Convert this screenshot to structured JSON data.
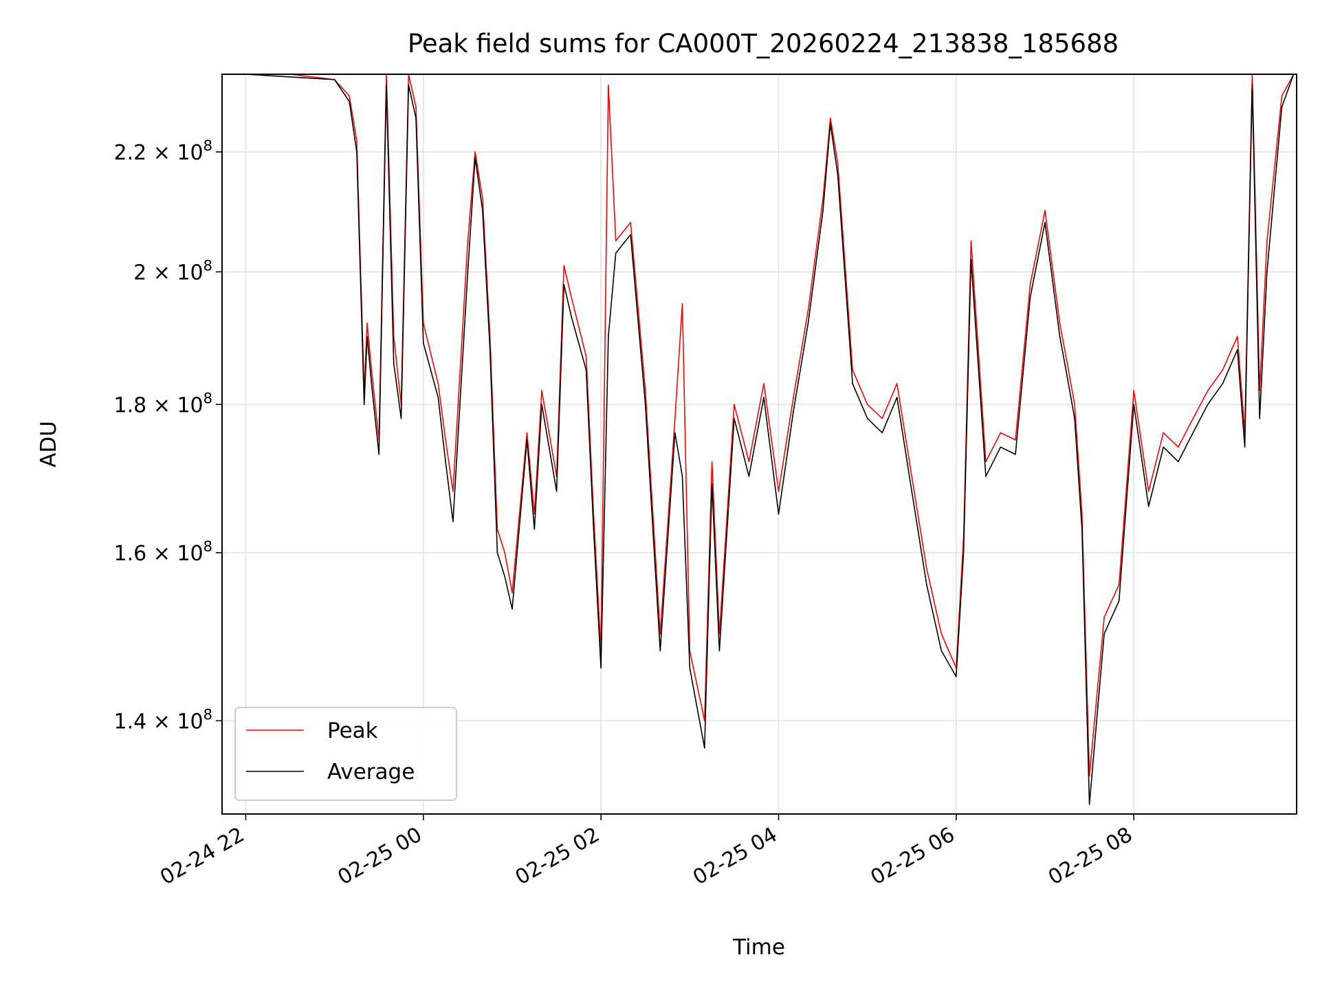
{
  "chart_data": {
    "type": "line",
    "title": "Peak field sums for CA000T_20260224_213838_185688",
    "xlabel": "Time",
    "ylabel": "ADU",
    "yscale": "log",
    "xlim": [
      "2026-02-24T21:44",
      "2026-02-25T09:50"
    ],
    "ylim": [
      130000000,
      234000000
    ],
    "grid": true,
    "legend": "lower-left",
    "x_ticks": [
      {
        "t": "2026-02-24T22:00",
        "label": "02-24 22"
      },
      {
        "t": "2026-02-25T00:00",
        "label": "02-25 00"
      },
      {
        "t": "2026-02-25T02:00",
        "label": "02-25 02"
      },
      {
        "t": "2026-02-25T04:00",
        "label": "02-25 04"
      },
      {
        "t": "2026-02-25T06:00",
        "label": "02-25 06"
      },
      {
        "t": "2026-02-25T08:00",
        "label": "02-25 08"
      }
    ],
    "y_ticks": [
      {
        "value": 140000000,
        "mant": "1.4",
        "exp": "8"
      },
      {
        "value": 160000000,
        "mant": "1.6",
        "exp": "8"
      },
      {
        "value": 180000000,
        "mant": "1.8",
        "exp": "8"
      },
      {
        "value": 200000000,
        "mant": "2",
        "exp": "8"
      },
      {
        "value": 220000000,
        "mant": "2.2",
        "exp": "8"
      }
    ],
    "series": [
      {
        "name": "Peak",
        "color": "#ff0000",
        "x": [
          "2026-02-24T22:00",
          "2026-02-24T22:30",
          "2026-02-24T23:00",
          "2026-02-24T23:10",
          "2026-02-24T23:15",
          "2026-02-24T23:20",
          "2026-02-24T23:22",
          "2026-02-24T23:25",
          "2026-02-24T23:30",
          "2026-02-24T23:35",
          "2026-02-24T23:40",
          "2026-02-24T23:45",
          "2026-02-24T23:50",
          "2026-02-24T23:55",
          "2026-02-25T00:00",
          "2026-02-25T00:10",
          "2026-02-25T00:15",
          "2026-02-25T00:20",
          "2026-02-25T00:30",
          "2026-02-25T00:35",
          "2026-02-25T00:40",
          "2026-02-25T00:45",
          "2026-02-25T00:50",
          "2026-02-25T00:55",
          "2026-02-25T01:00",
          "2026-02-25T01:10",
          "2026-02-25T01:15",
          "2026-02-25T01:20",
          "2026-02-25T01:30",
          "2026-02-25T01:35",
          "2026-02-25T01:40",
          "2026-02-25T01:50",
          "2026-02-25T01:55",
          "2026-02-25T02:00",
          "2026-02-25T02:05",
          "2026-02-25T02:10",
          "2026-02-25T02:20",
          "2026-02-25T02:30",
          "2026-02-25T02:40",
          "2026-02-25T02:50",
          "2026-02-25T02:55",
          "2026-02-25T03:00",
          "2026-02-25T03:10",
          "2026-02-25T03:15",
          "2026-02-25T03:20",
          "2026-02-25T03:30",
          "2026-02-25T03:40",
          "2026-02-25T03:50",
          "2026-02-25T04:00",
          "2026-02-25T04:10",
          "2026-02-25T04:20",
          "2026-02-25T04:30",
          "2026-02-25T04:35",
          "2026-02-25T04:40",
          "2026-02-25T04:50",
          "2026-02-25T05:00",
          "2026-02-25T05:10",
          "2026-02-25T05:20",
          "2026-02-25T05:30",
          "2026-02-25T05:40",
          "2026-02-25T05:50",
          "2026-02-25T06:00",
          "2026-02-25T06:05",
          "2026-02-25T06:10",
          "2026-02-25T06:20",
          "2026-02-25T06:30",
          "2026-02-25T06:40",
          "2026-02-25T06:50",
          "2026-02-25T07:00",
          "2026-02-25T07:10",
          "2026-02-25T07:15",
          "2026-02-25T07:20",
          "2026-02-25T07:25",
          "2026-02-25T07:30",
          "2026-02-25T07:40",
          "2026-02-25T07:50",
          "2026-02-25T08:00",
          "2026-02-25T08:10",
          "2026-02-25T08:20",
          "2026-02-25T08:30",
          "2026-02-25T08:40",
          "2026-02-25T08:50",
          "2026-02-25T09:00",
          "2026-02-25T09:10",
          "2026-02-25T09:15",
          "2026-02-25T09:20",
          "2026-02-25T09:25",
          "2026-02-25T09:30",
          "2026-02-25T09:40",
          "2026-02-25T09:48"
        ],
        "y": [
          234000000,
          234000000,
          233000000,
          230000000,
          222000000,
          182000000,
          192000000,
          185000000,
          175000000,
          234000000,
          190000000,
          180000000,
          234000000,
          228000000,
          192000000,
          183000000,
          175000000,
          168000000,
          205000000,
          220000000,
          212000000,
          190000000,
          163000000,
          160000000,
          155000000,
          176000000,
          165000000,
          182000000,
          170000000,
          201000000,
          196000000,
          187000000,
          165000000,
          148000000,
          232000000,
          205000000,
          208000000,
          182000000,
          150000000,
          178000000,
          195000000,
          148000000,
          140000000,
          172000000,
          150000000,
          180000000,
          172000000,
          183000000,
          168000000,
          181000000,
          194000000,
          212000000,
          226000000,
          218000000,
          185000000,
          180000000,
          178000000,
          183000000,
          170000000,
          158000000,
          150000000,
          146000000,
          162000000,
          205000000,
          172000000,
          176000000,
          175000000,
          198000000,
          210000000,
          192000000,
          186000000,
          180000000,
          165000000,
          134000000,
          152000000,
          156000000,
          182000000,
          168000000,
          176000000,
          174000000,
          178000000,
          182000000,
          185000000,
          190000000,
          176000000,
          234000000,
          182000000,
          205000000,
          230000000,
          234000000
        ]
      },
      {
        "name": "Average",
        "color": "#000000",
        "x": [
          "2026-02-24T22:00",
          "2026-02-24T22:30",
          "2026-02-24T23:00",
          "2026-02-24T23:10",
          "2026-02-24T23:15",
          "2026-02-24T23:20",
          "2026-02-24T23:22",
          "2026-02-24T23:25",
          "2026-02-24T23:30",
          "2026-02-24T23:35",
          "2026-02-24T23:40",
          "2026-02-24T23:45",
          "2026-02-24T23:50",
          "2026-02-24T23:55",
          "2026-02-25T00:00",
          "2026-02-25T00:10",
          "2026-02-25T00:15",
          "2026-02-25T00:20",
          "2026-02-25T00:30",
          "2026-02-25T00:35",
          "2026-02-25T00:40",
          "2026-02-25T00:45",
          "2026-02-25T00:50",
          "2026-02-25T00:55",
          "2026-02-25T01:00",
          "2026-02-25T01:10",
          "2026-02-25T01:15",
          "2026-02-25T01:20",
          "2026-02-25T01:30",
          "2026-02-25T01:35",
          "2026-02-25T01:40",
          "2026-02-25T01:50",
          "2026-02-25T01:55",
          "2026-02-25T02:00",
          "2026-02-25T02:05",
          "2026-02-25T02:10",
          "2026-02-25T02:20",
          "2026-02-25T02:30",
          "2026-02-25T02:40",
          "2026-02-25T02:50",
          "2026-02-25T02:55",
          "2026-02-25T03:00",
          "2026-02-25T03:10",
          "2026-02-25T03:15",
          "2026-02-25T03:20",
          "2026-02-25T03:30",
          "2026-02-25T03:40",
          "2026-02-25T03:50",
          "2026-02-25T04:00",
          "2026-02-25T04:10",
          "2026-02-25T04:20",
          "2026-02-25T04:30",
          "2026-02-25T04:35",
          "2026-02-25T04:40",
          "2026-02-25T04:50",
          "2026-02-25T05:00",
          "2026-02-25T05:10",
          "2026-02-25T05:20",
          "2026-02-25T05:30",
          "2026-02-25T05:40",
          "2026-02-25T05:50",
          "2026-02-25T06:00",
          "2026-02-25T06:05",
          "2026-02-25T06:10",
          "2026-02-25T06:20",
          "2026-02-25T06:30",
          "2026-02-25T06:40",
          "2026-02-25T06:50",
          "2026-02-25T07:00",
          "2026-02-25T07:10",
          "2026-02-25T07:15",
          "2026-02-25T07:20",
          "2026-02-25T07:25",
          "2026-02-25T07:30",
          "2026-02-25T07:40",
          "2026-02-25T07:50",
          "2026-02-25T08:00",
          "2026-02-25T08:10",
          "2026-02-25T08:20",
          "2026-02-25T08:30",
          "2026-02-25T08:40",
          "2026-02-25T08:50",
          "2026-02-25T09:00",
          "2026-02-25T09:10",
          "2026-02-25T09:15",
          "2026-02-25T09:20",
          "2026-02-25T09:25",
          "2026-02-25T09:30",
          "2026-02-25T09:40",
          "2026-02-25T09:48"
        ],
        "y": [
          234000000,
          233500000,
          233000000,
          229000000,
          220000000,
          180000000,
          190000000,
          183000000,
          173000000,
          232000000,
          186000000,
          178000000,
          232000000,
          226000000,
          189000000,
          181000000,
          172000000,
          164000000,
          200000000,
          219000000,
          210000000,
          188000000,
          160000000,
          157000000,
          153000000,
          175000000,
          163000000,
          180000000,
          168000000,
          198000000,
          193000000,
          185000000,
          163000000,
          146000000,
          190000000,
          203000000,
          206000000,
          180000000,
          148000000,
          176000000,
          170000000,
          146000000,
          137000000,
          169000000,
          148000000,
          178000000,
          170000000,
          181000000,
          165000000,
          179000000,
          192000000,
          210000000,
          225000000,
          216000000,
          183000000,
          178000000,
          176000000,
          181000000,
          168000000,
          156000000,
          148000000,
          145000000,
          160000000,
          202000000,
          170000000,
          174000000,
          173000000,
          196000000,
          208000000,
          190000000,
          184000000,
          178000000,
          163000000,
          131000000,
          150000000,
          154000000,
          180000000,
          166000000,
          174000000,
          172000000,
          176000000,
          180000000,
          183000000,
          188000000,
          174000000,
          232000000,
          178000000,
          200000000,
          228000000,
          234000000
        ]
      }
    ]
  }
}
